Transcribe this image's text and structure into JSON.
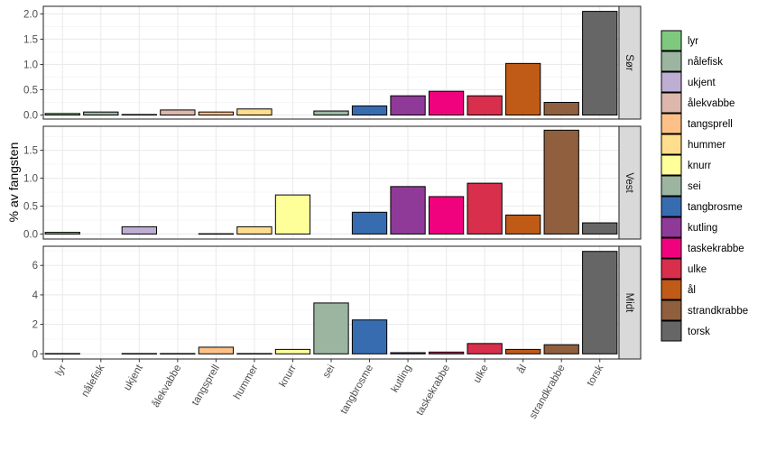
{
  "chart_data": {
    "type": "bar",
    "title": "",
    "xlabel": "",
    "ylabel": "% av fangsten",
    "grid": true,
    "legend_position": "right",
    "categories": [
      "lyr",
      "nålefisk",
      "ukjent",
      "ålekvabbe",
      "tangsprell",
      "hummer",
      "knurr",
      "sei",
      "tangbrosme",
      "kutling",
      "taskekrabbe",
      "ulke",
      "ål",
      "strandkrabbe",
      "torsk"
    ],
    "colors": [
      "#7fc97f",
      "#9bb5a1",
      "#beaed4",
      "#ddb7ac",
      "#fdc086",
      "#fedd8c",
      "#ffff99",
      "#9bb5a1",
      "#386cb0",
      "#8f3a98",
      "#f0027f",
      "#d72f4c",
      "#bf5b17",
      "#8f5f3e",
      "#666666"
    ],
    "panels": [
      {
        "name": "Sør",
        "ylim": [
          -0.08,
          2.15
        ],
        "yticks": [
          0.0,
          0.5,
          1.0,
          1.5,
          2.0
        ],
        "ytick_labels": [
          "0.0",
          "0.5",
          "1.0",
          "1.5",
          "2.0"
        ],
        "values": [
          0.03,
          0.06,
          0.01,
          0.1,
          0.06,
          0.12,
          null,
          0.08,
          0.18,
          0.38,
          0.47,
          0.38,
          1.02,
          0.25,
          2.05
        ]
      },
      {
        "name": "Vest",
        "ylim": [
          -0.09,
          1.93
        ],
        "yticks": [
          0.0,
          0.5,
          1.0,
          1.5
        ],
        "ytick_labels": [
          "0.0",
          "0.5",
          "1.0",
          "1.5"
        ],
        "values": [
          0.03,
          null,
          0.13,
          null,
          0.005,
          0.13,
          0.7,
          null,
          0.39,
          0.85,
          0.67,
          0.91,
          0.34,
          1.86,
          0.2
        ]
      },
      {
        "name": "Midt",
        "ylim": [
          -0.35,
          7.3
        ],
        "yticks": [
          0,
          2,
          4,
          6
        ],
        "ytick_labels": [
          "0",
          "2",
          "4",
          "6"
        ],
        "values": [
          0.02,
          null,
          0.02,
          0.02,
          0.45,
          0.02,
          0.3,
          3.45,
          2.3,
          0.08,
          0.12,
          0.7,
          0.3,
          0.62,
          6.95
        ]
      }
    ],
    "legend": {
      "title": "",
      "entries": [
        "lyr",
        "nålefisk",
        "ukjent",
        "ålekvabbe",
        "tangsprell",
        "hummer",
        "knurr",
        "sei",
        "tangbrosme",
        "kutling",
        "taskekrabbe",
        "ulke",
        "ål",
        "strandkrabbe",
        "torsk"
      ]
    }
  }
}
